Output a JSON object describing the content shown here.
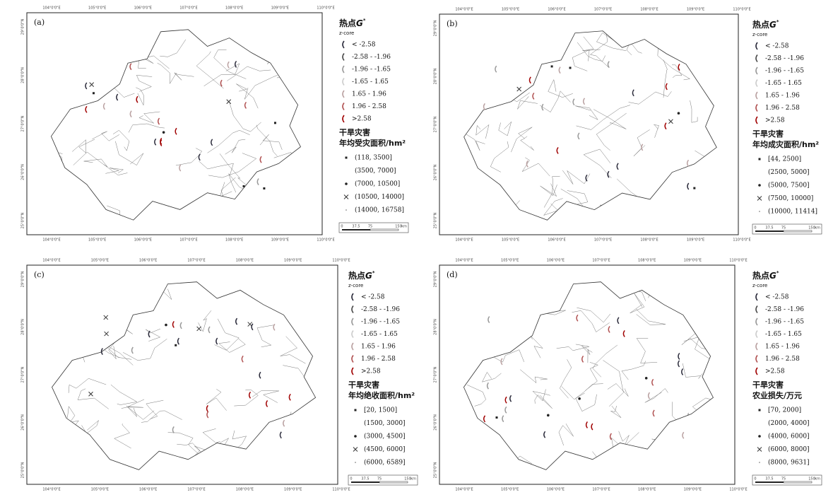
{
  "legend_common": {
    "title": "热点",
    "stat": "G",
    "stat_sup": "*",
    "subtitle": "z-core",
    "z_classes": [
      "< -2.58",
      "-2.58 - -1.96",
      "-1.96 - -1.65",
      "-1.65 - 1.65",
      "1.65 - 1.96",
      "1.96 - 2.58",
      ">2.58"
    ],
    "category": "干旱灾害"
  },
  "panels": [
    {
      "label": "(a)",
      "measure": "年均受灾面积/hm²",
      "value_classes": [
        "(118, 3500]",
        "(3500, 7000]",
        "(7000, 10500]",
        "(10500, 14000]",
        "(14000, 16758]"
      ]
    },
    {
      "label": "(b)",
      "measure": "年均成灾面积/hm²",
      "value_classes": [
        "[44, 2500]",
        "(2500, 5000]",
        "(5000, 7500]",
        "(7500, 10000]",
        "(10000, 11414]"
      ]
    },
    {
      "label": "(c)",
      "measure": "年均绝收面积/hm²",
      "value_classes": [
        "[20, 1500]",
        "(1500, 3000]",
        "(3000, 4500]",
        "(4500, 6000]",
        "(6000, 6589]"
      ]
    },
    {
      "label": "(d)",
      "measure": "农业损失/万元",
      "value_classes": [
        "[70, 2000]",
        "(2000, 4000]",
        "(4000, 6000]",
        "(6000, 8000]",
        "(8000, 9631]"
      ]
    }
  ],
  "lon_labels": [
    "104°0'0\"E",
    "105°0'0\"E",
    "106°0'0\"E",
    "107°0'0\"E",
    "108°0'0\"E",
    "109°0'0\"E",
    "110°0'0\"E"
  ],
  "lat_labels": [
    "29°0'0\"N",
    "28°0'0\"N",
    "27°0'0\"N",
    "26°0'0\"N",
    "25°0'0\"N"
  ],
  "scale_labels": [
    "0",
    "37.5",
    "75",
    "150",
    "km"
  ]
}
